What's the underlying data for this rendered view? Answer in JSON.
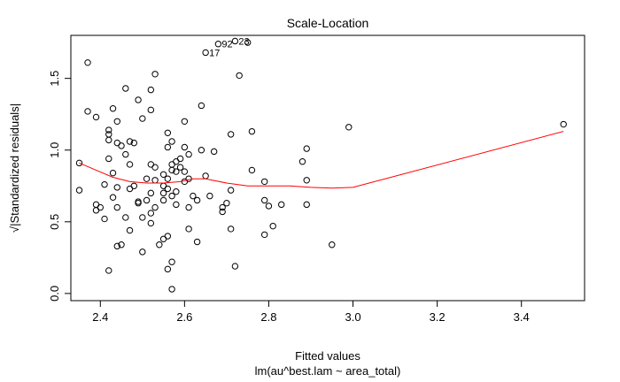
{
  "chart_data": {
    "type": "scatter",
    "title": "Scale-Location",
    "xlabel": "Fitted values",
    "ylabel": "√|Standardized residuals|",
    "sublabel": "lm(au^best.lam ~ area_total)",
    "xlim": [
      2.33,
      3.55
    ],
    "ylim": [
      -0.05,
      1.8
    ],
    "xticks": [
      2.4,
      2.6,
      2.8,
      3.0,
      3.2,
      3.4
    ],
    "xtick_labels": [
      "2.4",
      "2.6",
      "2.8",
      "3.0",
      "3.2",
      "3.4"
    ],
    "yticks": [
      0.0,
      0.5,
      1.0,
      1.5
    ],
    "ytick_labels": [
      "0.0",
      "0.5",
      "1.0",
      "1.5"
    ],
    "grid": false,
    "colors": {
      "points": "#000000",
      "smoother": "#ff0000"
    },
    "points": [
      [
        2.35,
        0.72
      ],
      [
        2.35,
        0.91
      ],
      [
        2.37,
        1.61
      ],
      [
        2.37,
        1.27
      ],
      [
        2.39,
        1.23
      ],
      [
        2.39,
        0.58
      ],
      [
        2.39,
        0.62
      ],
      [
        2.4,
        0.6
      ],
      [
        2.41,
        0.52
      ],
      [
        2.41,
        0.76
      ],
      [
        2.42,
        0.94
      ],
      [
        2.42,
        1.14
      ],
      [
        2.42,
        1.11
      ],
      [
        2.42,
        1.07
      ],
      [
        2.42,
        0.16
      ],
      [
        2.43,
        1.29
      ],
      [
        2.43,
        0.84
      ],
      [
        2.43,
        0.67
      ],
      [
        2.44,
        1.2
      ],
      [
        2.44,
        1.05
      ],
      [
        2.44,
        0.6
      ],
      [
        2.44,
        0.74
      ],
      [
        2.44,
        0.33
      ],
      [
        2.45,
        0.34
      ],
      [
        2.45,
        1.03
      ],
      [
        2.46,
        0.97
      ],
      [
        2.46,
        0.53
      ],
      [
        2.46,
        1.43
      ],
      [
        2.47,
        1.06
      ],
      [
        2.47,
        0.9
      ],
      [
        2.47,
        0.73
      ],
      [
        2.47,
        0.44
      ],
      [
        2.48,
        1.05
      ],
      [
        2.48,
        0.75
      ],
      [
        2.49,
        0.63
      ],
      [
        2.49,
        1.35
      ],
      [
        2.49,
        0.64
      ],
      [
        2.5,
        1.22
      ],
      [
        2.5,
        0.53
      ],
      [
        2.5,
        0.29
      ],
      [
        2.51,
        0.8
      ],
      [
        2.51,
        0.65
      ],
      [
        2.52,
        0.56
      ],
      [
        2.52,
        0.49
      ],
      [
        2.52,
        0.9
      ],
      [
        2.52,
        0.7
      ],
      [
        2.52,
        1.28
      ],
      [
        2.52,
        1.42
      ],
      [
        2.53,
        1.53
      ],
      [
        2.53,
        0.79
      ],
      [
        2.53,
        0.6
      ],
      [
        2.53,
        0.88
      ],
      [
        2.54,
        0.34
      ],
      [
        2.55,
        0.38
      ],
      [
        2.55,
        0.65
      ],
      [
        2.55,
        0.7
      ],
      [
        2.55,
        0.75
      ],
      [
        2.55,
        0.83
      ],
      [
        2.56,
        0.4
      ],
      [
        2.56,
        0.17
      ],
      [
        2.56,
        1.12
      ],
      [
        2.56,
        1.02
      ],
      [
        2.56,
        0.8
      ],
      [
        2.56,
        0.73
      ],
      [
        2.57,
        0.22
      ],
      [
        2.57,
        0.03
      ],
      [
        2.57,
        0.9
      ],
      [
        2.57,
        0.68
      ],
      [
        2.57,
        0.86
      ],
      [
        2.57,
        1.06
      ],
      [
        2.58,
        0.71
      ],
      [
        2.58,
        0.62
      ],
      [
        2.58,
        0.85
      ],
      [
        2.58,
        0.92
      ],
      [
        2.59,
        0.94
      ],
      [
        2.59,
        0.88
      ],
      [
        2.6,
        0.78
      ],
      [
        2.6,
        0.85
      ],
      [
        2.6,
        1.02
      ],
      [
        2.6,
        1.2
      ],
      [
        2.61,
        0.97
      ],
      [
        2.61,
        0.8
      ],
      [
        2.61,
        0.6
      ],
      [
        2.61,
        0.45
      ],
      [
        2.62,
        0.68
      ],
      [
        2.63,
        0.36
      ],
      [
        2.63,
        0.65
      ],
      [
        2.64,
        1.31
      ],
      [
        2.64,
        1.0
      ],
      [
        2.65,
        0.82
      ],
      [
        2.65,
        1.68
      ],
      [
        2.66,
        0.68
      ],
      [
        2.67,
        0.99
      ],
      [
        2.68,
        1.74
      ],
      [
        2.69,
        0.57
      ],
      [
        2.69,
        0.6
      ],
      [
        2.7,
        0.63
      ],
      [
        2.71,
        0.45
      ],
      [
        2.71,
        0.72
      ],
      [
        2.71,
        1.11
      ],
      [
        2.72,
        1.76
      ],
      [
        2.72,
        0.19
      ],
      [
        2.73,
        1.52
      ],
      [
        2.75,
        1.75
      ],
      [
        2.76,
        1.13
      ],
      [
        2.76,
        0.86
      ],
      [
        2.79,
        0.78
      ],
      [
        2.79,
        0.65
      ],
      [
        2.79,
        0.41
      ],
      [
        2.8,
        0.61
      ],
      [
        2.81,
        0.47
      ],
      [
        2.83,
        0.62
      ],
      [
        2.88,
        0.92
      ],
      [
        2.89,
        0.79
      ],
      [
        2.89,
        1.01
      ],
      [
        2.89,
        0.62
      ],
      [
        2.95,
        0.34
      ],
      [
        2.99,
        1.16
      ],
      [
        3.5,
        1.18
      ]
    ],
    "point_labels": [
      {
        "text": "17",
        "x": 2.65,
        "y": 1.68
      },
      {
        "text": "92",
        "x": 2.68,
        "y": 1.74
      },
      {
        "text": "23",
        "x": 2.72,
        "y": 1.76
      }
    ],
    "smoother": [
      [
        2.35,
        0.91
      ],
      [
        2.39,
        0.86
      ],
      [
        2.43,
        0.81
      ],
      [
        2.47,
        0.78
      ],
      [
        2.51,
        0.77
      ],
      [
        2.55,
        0.77
      ],
      [
        2.59,
        0.78
      ],
      [
        2.62,
        0.8
      ],
      [
        2.65,
        0.8
      ],
      [
        2.7,
        0.77
      ],
      [
        2.75,
        0.75
      ],
      [
        2.8,
        0.75
      ],
      [
        2.85,
        0.75
      ],
      [
        2.9,
        0.74
      ],
      [
        2.95,
        0.735
      ],
      [
        3.0,
        0.74
      ],
      [
        3.5,
        1.13
      ]
    ]
  }
}
